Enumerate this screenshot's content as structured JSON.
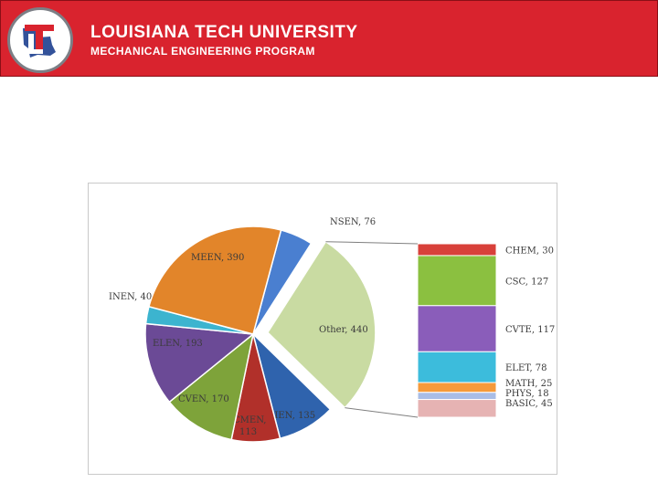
{
  "header": {
    "title": "LOUISIANA TECH UNIVERSITY",
    "subtitle": "MECHANICAL ENGINEERING PROGRAM",
    "logo_text": "LT",
    "colors": {
      "red": "#d9232e",
      "blue": "#1d3f8f"
    }
  },
  "chart_data": {
    "type": "bar-of-pie",
    "pie": {
      "slices": [
        {
          "label": "NSEN",
          "value": 76,
          "text": "NSEN, 76",
          "color": "#4a7fd0"
        },
        {
          "label": "Other",
          "value": 440,
          "text": "Other, 440",
          "color": "#c9dba2",
          "exploded": true
        },
        {
          "label": "BIEN",
          "value": 135,
          "text": "BIEN, 135",
          "color": "#2f63ad"
        },
        {
          "label": "CMEN",
          "value": 113,
          "text": "CMEN, 113",
          "color": "#b1302a"
        },
        {
          "label": "CVEN",
          "value": 170,
          "text": "CVEN, 170",
          "color": "#7ea33a"
        },
        {
          "label": "ELEN",
          "value": 193,
          "text": "ELEN, 193",
          "color": "#6b4a96"
        },
        {
          "label": "INEN",
          "value": 40,
          "text": "INEN, 40",
          "color": "#3cb4cf"
        },
        {
          "label": "MEEN",
          "value": 390,
          "text": "MEEN, 390",
          "color": "#e2852a"
        }
      ]
    },
    "bar": {
      "segments": [
        {
          "label": "CHEM",
          "value": 30,
          "text": "CHEM, 30",
          "color": "#d8403a"
        },
        {
          "label": "CSC",
          "value": 127,
          "text": "CSC, 127",
          "color": "#8bc040"
        },
        {
          "label": "CVTE",
          "value": 117,
          "text": "CVTE, 117",
          "color": "#8a5dba"
        },
        {
          "label": "ELET",
          "value": 78,
          "text": "ELET, 78",
          "color": "#3cbcdc"
        },
        {
          "label": "MATH",
          "value": 25,
          "text": "MATH, 25",
          "color": "#f59a3b"
        },
        {
          "label": "PHYS",
          "value": 18,
          "text": "PHYS, 18",
          "color": "#a9bde6"
        },
        {
          "label": "BASIC",
          "value": 45,
          "text": "BASIC, 45",
          "color": "#e6b3b3"
        }
      ]
    }
  }
}
